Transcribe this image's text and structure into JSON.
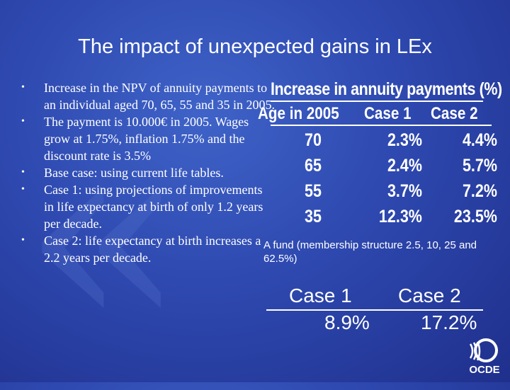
{
  "title": "The impact of unexpected gains in LEx",
  "bullets": [
    "Increase in the NPV of annuity payments to an individual aged 70, 65, 55 and 35 in 2005.",
    "The payment is 10.000€ in 2005. Wages grow at 1.75%, inflation 1.75% and the discount rate is 3.5%",
    "Base case: using current life tables.",
    "Case 1: using projections of improvements in life expectancy at birth of only 1.2 years per decade.",
    "Case 2: life expectancy at birth increases a 2.2 years per decade."
  ],
  "table": {
    "title": "Increase in annuity payments (%)",
    "headers": [
      "Age in 2005",
      "Case 1",
      "Case 2"
    ],
    "rows": [
      [
        "70",
        "2.3%",
        "4.4%"
      ],
      [
        "65",
        "2.4%",
        "5.7%"
      ],
      [
        "55",
        "3.7%",
        "7.2%"
      ],
      [
        "35",
        "12.3%",
        "23.5%"
      ]
    ]
  },
  "fund": {
    "note": "A fund (membership structure 2.5, 10, 25 and 62.5%)",
    "headers": [
      "Case 1",
      "Case 2"
    ],
    "values": [
      "8.9%",
      "17.2%"
    ]
  },
  "logo": {
    "text": "OCDE",
    "icon": "oecd-logo-icon"
  }
}
